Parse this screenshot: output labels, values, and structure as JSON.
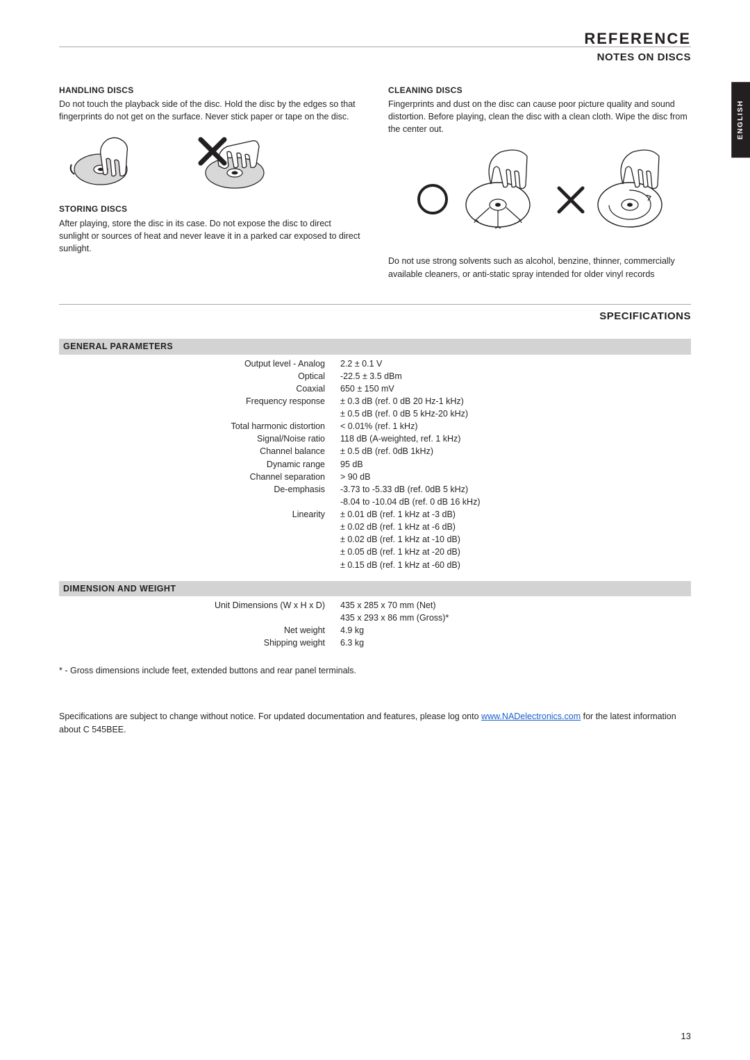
{
  "header": {
    "title": "REFERENCE",
    "subtitle": "NOTES ON DISCS",
    "lang_tab": "ENGLISH"
  },
  "notes": {
    "handling": {
      "head": "HANDLING DISCS",
      "text": "Do not touch the playback side of the disc. Hold the disc by the edges so that fingerprints do not get on the surface. Never stick paper or tape on the disc."
    },
    "storing": {
      "head": "STORING DISCS",
      "text": "After playing, store the disc in its case. Do not expose the disc to direct sunlight or sources of heat and never leave it in a parked car exposed to direct sunlight."
    },
    "cleaning": {
      "head": "CLEANING DISCS",
      "text": "Fingerprints and dust on the disc can cause poor picture quality and sound distortion. Before playing, clean the disc with a clean cloth. Wipe the disc from the center out.",
      "text2": "Do not use strong solvents such as alcohol, benzine, thinner, commercially available cleaners, or anti-static spray intended for older vinyl records"
    }
  },
  "specs_header": "SPECIFICATIONS",
  "bands": {
    "general": "GENERAL PARAMETERS",
    "dim": "DIMENSION AND WEIGHT"
  },
  "general": [
    {
      "label": "Output level - Analog",
      "values": [
        "2.2 ± 0.1 V"
      ]
    },
    {
      "label": "Optical",
      "values": [
        "-22.5 ± 3.5 dBm"
      ]
    },
    {
      "label": "Coaxial",
      "values": [
        "650 ± 150 mV"
      ]
    },
    {
      "label": "Frequency response",
      "values": [
        "± 0.3 dB (ref. 0 dB  20 Hz-1 kHz)",
        "± 0.5 dB (ref. 0 dB  5 kHz-20 kHz)"
      ]
    },
    {
      "label": "Total harmonic distortion",
      "values": [
        "< 0.01% (ref. 1 kHz)"
      ]
    },
    {
      "label": "Signal/Noise ratio",
      "values": [
        "118 dB (A-weighted, ref. 1 kHz)"
      ]
    },
    {
      "label": "Channel balance",
      "values": [
        "± 0.5 dB (ref. 0dB 1kHz)"
      ]
    },
    {
      "label": "Dynamic range",
      "values": [
        "95 dB"
      ]
    },
    {
      "label": "Channel separation",
      "values": [
        "> 90 dB"
      ]
    },
    {
      "label": "De-emphasis",
      "values": [
        "-3.73 to -5.33 dB (ref. 0dB  5 kHz)",
        "-8.04 to -10.04 dB (ref. 0 dB 16 kHz)"
      ]
    },
    {
      "label": "Linearity",
      "values": [
        "± 0.01 dB (ref. 1 kHz at -3 dB)",
        "± 0.02 dB (ref. 1 kHz at -6 dB)",
        "± 0.02 dB (ref. 1 kHz at -10 dB)",
        "± 0.05 dB (ref. 1 kHz at -20 dB)",
        "± 0.15 dB (ref. 1 kHz at -60 dB)"
      ]
    }
  ],
  "dimension": [
    {
      "label": "Unit Dimensions (W x H x D)",
      "values": [
        "435 x 285 x 70 mm (Net)",
        "435 x 293 x 86 mm (Gross)*"
      ]
    },
    {
      "label": "Net weight",
      "values": [
        "4.9 kg"
      ]
    },
    {
      "label": "Shipping weight",
      "values": [
        "6.3 kg"
      ]
    }
  ],
  "footnote": "* - Gross dimensions include feet, extended buttons and rear panel terminals.",
  "info": {
    "pre": "Specifications are subject to change without notice. For updated documentation and features, please log onto ",
    "link_text": "www.NADelectronics.com",
    "post": " for the latest information about C 545BEE."
  },
  "page_number": "13"
}
